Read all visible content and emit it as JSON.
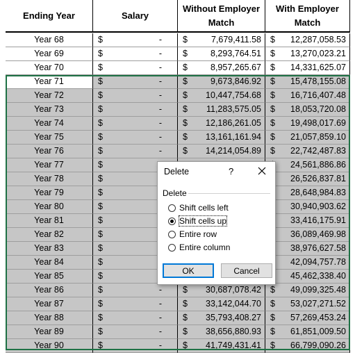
{
  "header": {
    "col_ending_year": "Ending Year",
    "col_salary": "Salary",
    "col_without": "Without Employer Match",
    "col_with": "With Employer Match"
  },
  "rows": [
    {
      "year": "Year 68",
      "salary_symbol": "$",
      "salary": "-",
      "without_symbol": "$",
      "without": "7,679,411.58",
      "with_symbol": "$",
      "with": "12,287,058.53",
      "selected": false
    },
    {
      "year": "Year 69",
      "salary_symbol": "$",
      "salary": "-",
      "without_symbol": "$",
      "without": "8,293,764.51",
      "with_symbol": "$",
      "with": "13,270,023.21",
      "selected": false
    },
    {
      "year": "Year 70",
      "salary_symbol": "$",
      "salary": "-",
      "without_symbol": "$",
      "without": "8,957,265.67",
      "with_symbol": "$",
      "with": "14,331,625.07",
      "selected": false
    },
    {
      "year": "Year 71",
      "salary_symbol": "$",
      "salary": "-",
      "without_symbol": "$",
      "without": "9,673,846.92",
      "with_symbol": "$",
      "with": "15,478,155.08",
      "selected": true
    },
    {
      "year": "Year 72",
      "salary_symbol": "$",
      "salary": "-",
      "without_symbol": "$",
      "without": "10,447,754.68",
      "with_symbol": "$",
      "with": "16,716,407.48",
      "selected": true
    },
    {
      "year": "Year 73",
      "salary_symbol": "$",
      "salary": "-",
      "without_symbol": "$",
      "without": "11,283,575.05",
      "with_symbol": "$",
      "with": "18,053,720.08",
      "selected": true
    },
    {
      "year": "Year 74",
      "salary_symbol": "$",
      "salary": "-",
      "without_symbol": "$",
      "without": "12,186,261.05",
      "with_symbol": "$",
      "with": "19,498,017.69",
      "selected": true
    },
    {
      "year": "Year 75",
      "salary_symbol": "$",
      "salary": "-",
      "without_symbol": "$",
      "without": "13,161,161.94",
      "with_symbol": "$",
      "with": "21,057,859.10",
      "selected": true
    },
    {
      "year": "Year 76",
      "salary_symbol": "$",
      "salary": "-",
      "without_symbol": "$",
      "without": "14,214,054.89",
      "with_symbol": "$",
      "with": "22,742,487.83",
      "selected": true
    },
    {
      "year": "Year 77",
      "salary_symbol": "$",
      "salary": "",
      "without_symbol": "",
      "without": "",
      "with_symbol": "$",
      "with": "24,561,886.86",
      "selected": true
    },
    {
      "year": "Year 78",
      "salary_symbol": "$",
      "salary": "",
      "without_symbol": "",
      "without": "",
      "with_symbol": "$",
      "with": "26,526,837.81",
      "selected": true
    },
    {
      "year": "Year 79",
      "salary_symbol": "$",
      "salary": "",
      "without_symbol": "",
      "without": "",
      "with_symbol": "$",
      "with": "28,648,984.83",
      "selected": true
    },
    {
      "year": "Year 80",
      "salary_symbol": "$",
      "salary": "",
      "without_symbol": "",
      "without": "",
      "with_symbol": "$",
      "with": "30,940,903.62",
      "selected": true
    },
    {
      "year": "Year 81",
      "salary_symbol": "$",
      "salary": "",
      "without_symbol": "",
      "without": "",
      "with_symbol": "$",
      "with": "33,416,175.91",
      "selected": true
    },
    {
      "year": "Year 82",
      "salary_symbol": "$",
      "salary": "",
      "without_symbol": "",
      "without": "",
      "with_symbol": "$",
      "with": "36,089,469.98",
      "selected": true
    },
    {
      "year": "Year 83",
      "salary_symbol": "$",
      "salary": "",
      "without_symbol": "",
      "without": "",
      "with_symbol": "$",
      "with": "38,976,627.58",
      "selected": true
    },
    {
      "year": "Year 84",
      "salary_symbol": "$",
      "salary": "",
      "without_symbol": "",
      "without": "",
      "with_symbol": "$",
      "with": "42,094,757.78",
      "selected": true
    },
    {
      "year": "Year 85",
      "salary_symbol": "$",
      "salary": "",
      "without_symbol": "",
      "without": "",
      "with_symbol": "$",
      "with": "45,462,338.40",
      "selected": true
    },
    {
      "year": "Year 86",
      "salary_symbol": "$",
      "salary": "-",
      "without_symbol": "$",
      "without": "30,687,078.42",
      "with_symbol": "$",
      "with": "49,099,325.48",
      "selected": true
    },
    {
      "year": "Year 87",
      "salary_symbol": "$",
      "salary": "-",
      "without_symbol": "$",
      "without": "33,142,044.70",
      "with_symbol": "$",
      "with": "53,027,271.52",
      "selected": true
    },
    {
      "year": "Year 88",
      "salary_symbol": "$",
      "salary": "-",
      "without_symbol": "$",
      "without": "35,793,408.27",
      "with_symbol": "$",
      "with": "57,269,453.24",
      "selected": true
    },
    {
      "year": "Year 89",
      "salary_symbol": "$",
      "salary": "-",
      "without_symbol": "$",
      "without": "38,656,880.93",
      "with_symbol": "$",
      "with": "61,851,009.50",
      "selected": true
    },
    {
      "year": "Year 90",
      "salary_symbol": "$",
      "salary": "-",
      "without_symbol": "$",
      "without": "41,749,431.41",
      "with_symbol": "$",
      "with": "66,799,090.26",
      "selected": true
    }
  ],
  "dialog": {
    "title": "Delete",
    "help": "?",
    "close_icon": "close-icon",
    "group_label": "Delete",
    "options": [
      {
        "label": "Shift cells left",
        "checked": false
      },
      {
        "label": "Shift cells up",
        "checked": true
      },
      {
        "label": "Entire row",
        "checked": false
      },
      {
        "label": "Entire column",
        "checked": false
      }
    ],
    "ok_label": "OK",
    "cancel_label": "Cancel"
  },
  "colors": {
    "selection_fill": "#c6c6c6",
    "selection_border": "#1e7145",
    "ok_border": "#0078d7"
  }
}
